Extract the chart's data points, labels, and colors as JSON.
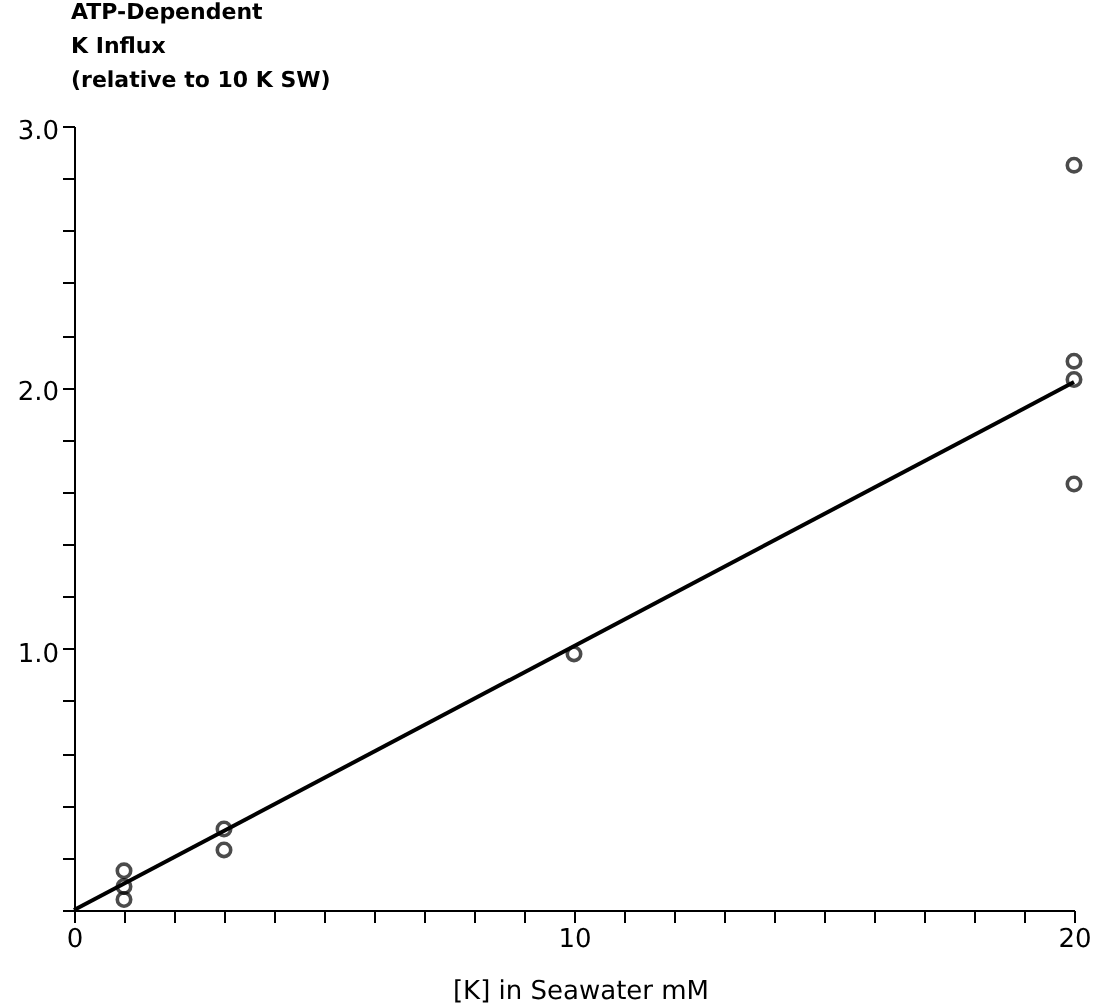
{
  "chart_data": {
    "type": "scatter",
    "xlabel": "[K] in Seawater mM",
    "ylabel": "ATP-Dependent\nK Influx\n(relative to 10 K SW)",
    "xlim": [
      0,
      20
    ],
    "ylim": [
      0,
      3.0
    ],
    "xticks": [
      0,
      {
        "value": 1,
        "label": null
      },
      {
        "value": 2,
        "label": null
      },
      {
        "value": 3,
        "label": null
      },
      {
        "value": 4,
        "label": null
      },
      {
        "value": 5,
        "label": null
      },
      {
        "value": 6,
        "label": null
      },
      {
        "value": 7,
        "label": null
      },
      {
        "value": 8,
        "label": null
      },
      {
        "value": 9,
        "label": null
      },
      10,
      {
        "value": 11,
        "label": null
      },
      {
        "value": 12,
        "label": null
      },
      {
        "value": 13,
        "label": null
      },
      {
        "value": 14,
        "label": null
      },
      {
        "value": 15,
        "label": null
      },
      {
        "value": 16,
        "label": null
      },
      {
        "value": 17,
        "label": null
      },
      {
        "value": 18,
        "label": null
      },
      {
        "value": 19,
        "label": null
      },
      20
    ],
    "yticks": [
      {
        "value": 0,
        "label": null
      },
      {
        "value": 0.2,
        "label": null
      },
      {
        "value": 0.4,
        "label": null
      },
      {
        "value": 0.6,
        "label": null
      },
      {
        "value": 0.8,
        "label": null
      },
      {
        "value": 1,
        "label": "1.0"
      },
      {
        "value": 1.2,
        "label": null
      },
      {
        "value": 1.4,
        "label": null
      },
      {
        "value": 1.6,
        "label": null
      },
      {
        "value": 1.8,
        "label": null
      },
      {
        "value": 2,
        "label": "2.0"
      },
      {
        "value": 2.2,
        "label": null
      },
      {
        "value": 2.4,
        "label": null
      },
      {
        "value": 2.6,
        "label": null
      },
      {
        "value": 2.8,
        "label": null
      },
      {
        "value": 3,
        "label": "3.0"
      }
    ],
    "marker": "circle",
    "series": [
      {
        "color": "#000000",
        "x": [
          1,
          1,
          1,
          3,
          3,
          10,
          20,
          20,
          20,
          20
        ],
        "values": [
          0.15,
          0.09,
          0.04,
          0.31,
          0.23,
          0.98,
          2.85,
          2.1,
          2.03,
          1.63
        ]
      },
      {
        "type": "line",
        "color": "#000000",
        "marker": "none",
        "line_style": "solid",
        "x": [
          0,
          20
        ],
        "values": [
          0,
          2.02
        ]
      }
    ]
  }
}
